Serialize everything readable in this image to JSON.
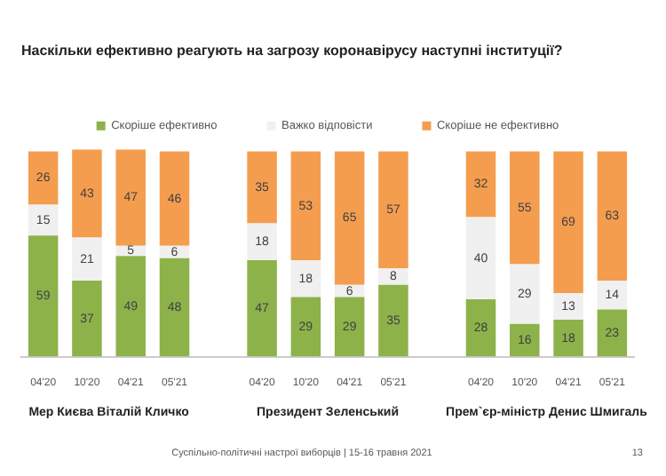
{
  "chart_data": {
    "type": "bar",
    "title": "Наскільки ефективно реагують на загрозу коронавірусу наступні інституції?",
    "categories": [
      "04'20",
      "10'20",
      "04'21",
      "05'21",
      null,
      "04'20",
      "10'20",
      "04'21",
      "05'21",
      null,
      "04'20",
      "10'20",
      "04'21",
      "05'21"
    ],
    "series": [
      {
        "name": "Скоріше ефективно",
        "color": "#8db24a",
        "values": [
          59,
          37,
          49,
          48,
          null,
          47,
          29,
          29,
          35,
          null,
          28,
          16,
          18,
          23
        ]
      },
      {
        "name": "Важко відповісти",
        "color": "#f0f0f0",
        "values": [
          15,
          21,
          5,
          6,
          null,
          18,
          18,
          6,
          8,
          null,
          40,
          29,
          13,
          14
        ]
      },
      {
        "name": "Скоріше не ефективно",
        "color": "#f59d4f",
        "values": [
          26,
          43,
          47,
          46,
          null,
          35,
          53,
          65,
          57,
          null,
          32,
          55,
          69,
          63
        ]
      }
    ],
    "stacked": true,
    "ylim": [
      0,
      101
    ],
    "tick_labels": "x",
    "data_labels": true,
    "legend": "top",
    "annotations": [
      "Мер Києва Віталій Кличко",
      "Президент Зеленський",
      "Прем`єр-міністр Денис Шмигаль",
      "Суспільно-політичні настрої виборців | 15-16 травня 2021",
      "13"
    ]
  }
}
